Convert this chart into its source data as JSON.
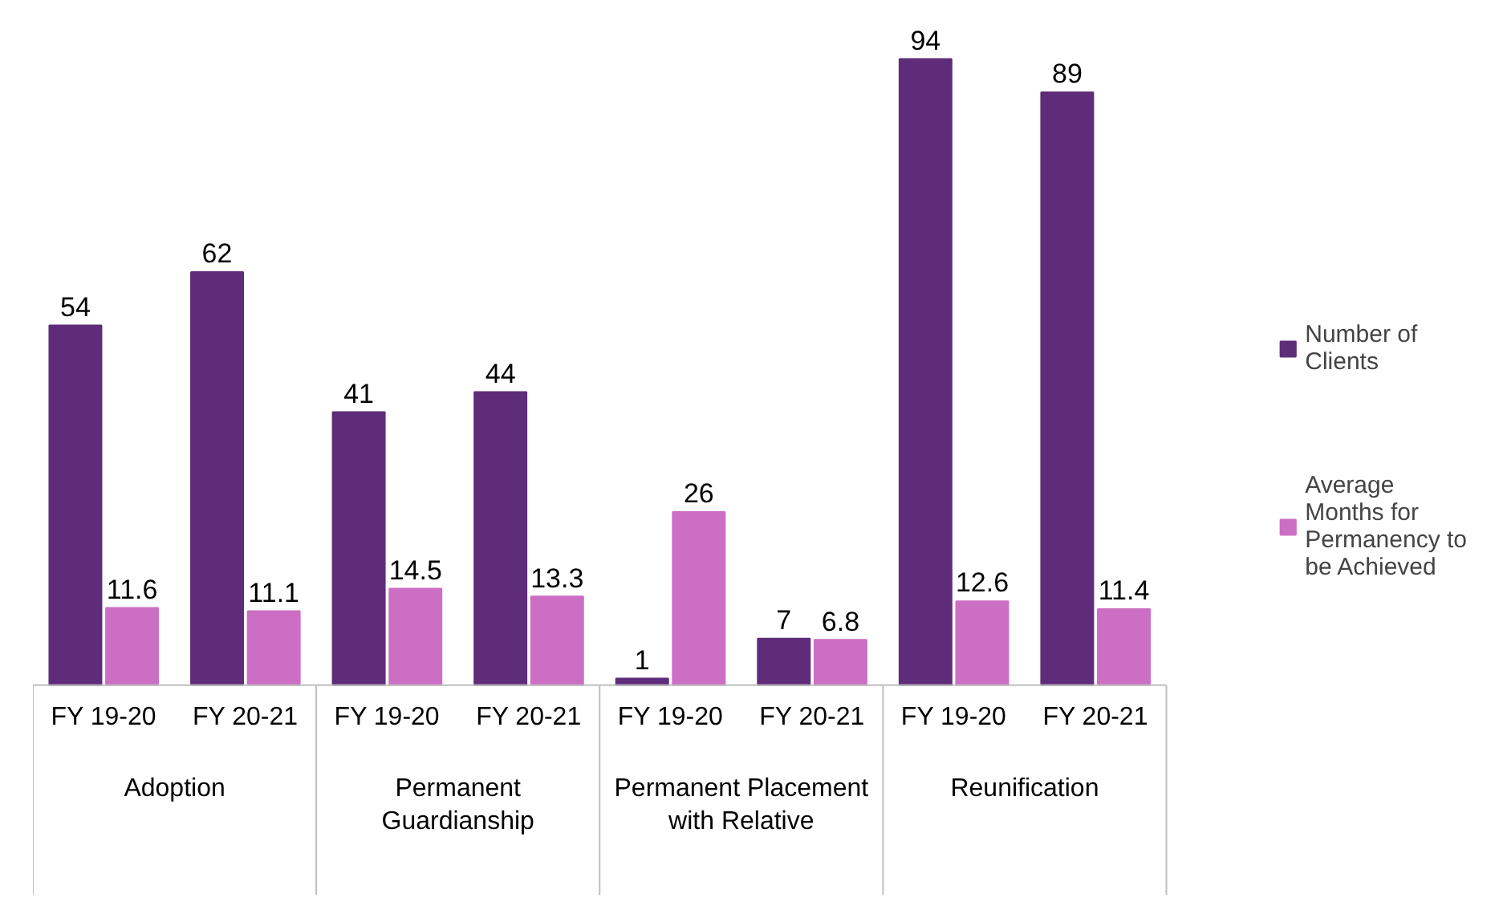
{
  "chart_data": {
    "type": "bar",
    "categories": [
      "FY 19-20",
      "FY 20-21",
      "FY 19-20",
      "FY 20-21",
      "FY 19-20",
      "FY 20-21",
      "FY 19-20",
      "FY 20-21"
    ],
    "series": [
      {
        "name": "Number of Clients",
        "color": "#5f2c7a",
        "values": [
          54,
          62,
          41,
          44,
          1,
          7,
          94,
          89
        ]
      },
      {
        "name": "Average Months for Permanency to be Achieved",
        "color": "#cc6fc4",
        "values": [
          11.6,
          11.1,
          14.5,
          13.3,
          26,
          6.8,
          12.6,
          11.4
        ]
      }
    ],
    "annotations": [
      "Adoption",
      "Permanent Guardianship",
      "Permanent Placement with Relative",
      "Reunification"
    ],
    "data_labels": true,
    "grid": false,
    "legend": "right"
  }
}
